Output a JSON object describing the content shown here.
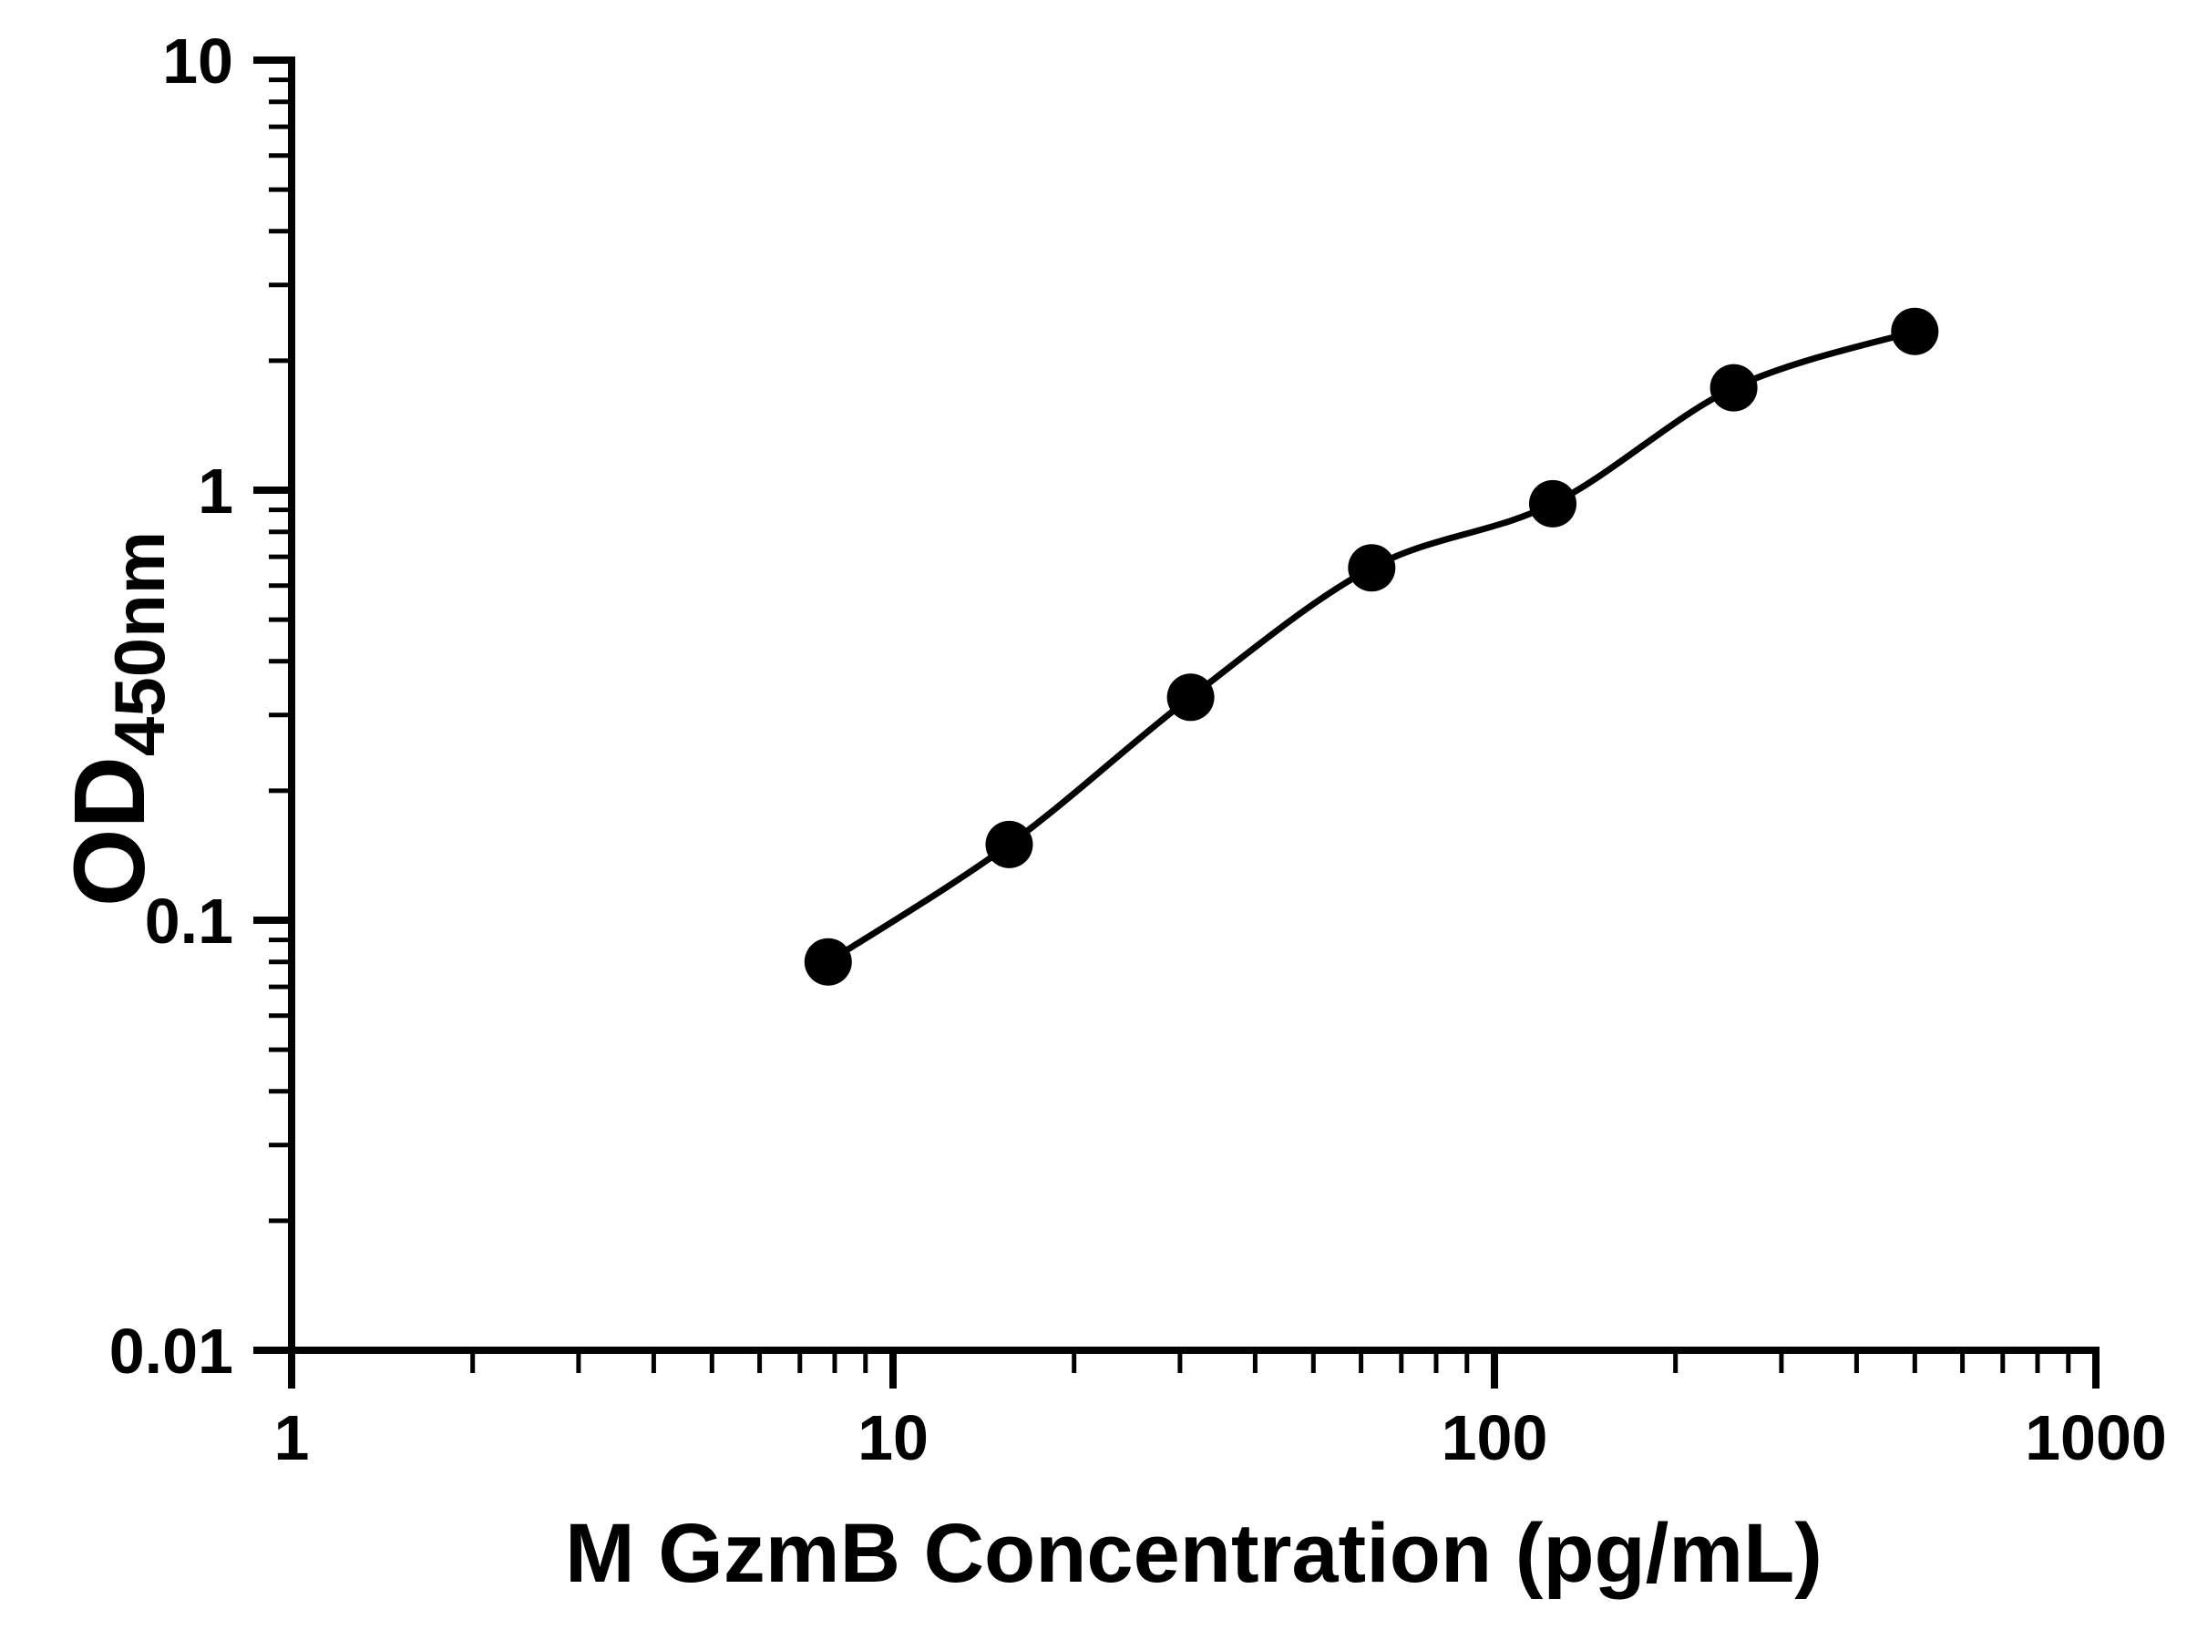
{
  "figure": {
    "background_color": "#ffffff",
    "foreground_color": "#000000"
  },
  "chart_data": {
    "type": "scatter",
    "subtype": "elisa-standard-curve-with-smooth-fit-line",
    "title": "",
    "xlabel": "M GzmB Concentration (pg/mL)",
    "ylabel": "OD450nm",
    "ylabel_parts": {
      "base": "OD",
      "subscript": "450nm"
    },
    "x_scale": "log10",
    "y_scale": "log10",
    "xlim": [
      1,
      1000
    ],
    "ylim": [
      0.01,
      10
    ],
    "x_tick_values": [
      1,
      10,
      100,
      1000
    ],
    "x_tick_labels": [
      "1",
      "10",
      "100",
      "1000"
    ],
    "y_tick_values": [
      0.01,
      0.1,
      1,
      10
    ],
    "y_tick_labels": [
      "0.01",
      "0.1",
      "1",
      "10"
    ],
    "minor_ticks": "log-decade",
    "grid": false,
    "legend": "none",
    "marker": {
      "shape": "circle",
      "color": "#000000"
    },
    "line": {
      "color": "#000000",
      "style": "smooth"
    },
    "series": [
      {
        "x": [
          7.8,
          15.6,
          31.25,
          62.5,
          125,
          250,
          500
        ],
        "y": [
          0.08,
          0.15,
          0.33,
          0.66,
          0.93,
          1.73,
          2.34
        ]
      }
    ]
  }
}
